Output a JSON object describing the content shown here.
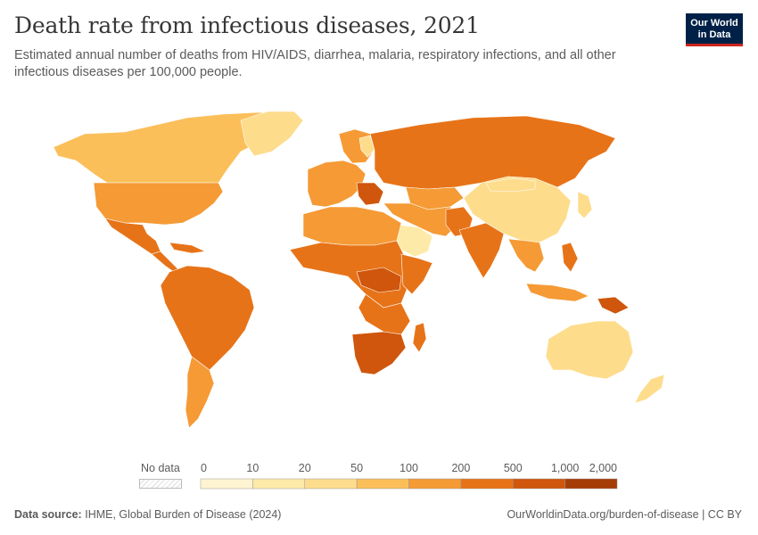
{
  "header": {
    "title": "Death rate from infectious diseases, 2021",
    "subtitle": "Estimated annual number of deaths from HIV/AIDS, diarrhea, malaria, respiratory infections, and all other infectious diseases per 100,000 people.",
    "logo_line1": "Our World",
    "logo_line2": "in Data"
  },
  "legend": {
    "no_data_label": "No data",
    "ticks": [
      "0",
      "10",
      "20",
      "50",
      "100",
      "200",
      "500",
      "1,000",
      "2,000"
    ],
    "colors": [
      "#fef4d2",
      "#feeaa8",
      "#fddc8c",
      "#fbbf5a",
      "#f59a35",
      "#e77318",
      "#cf560c",
      "#a63c06"
    ]
  },
  "footer": {
    "source_label": "Data source:",
    "source_value": "IHME, Global Burden of Disease (2024)",
    "url": "OurWorldinData.org/burden-of-disease | CC BY"
  }
}
